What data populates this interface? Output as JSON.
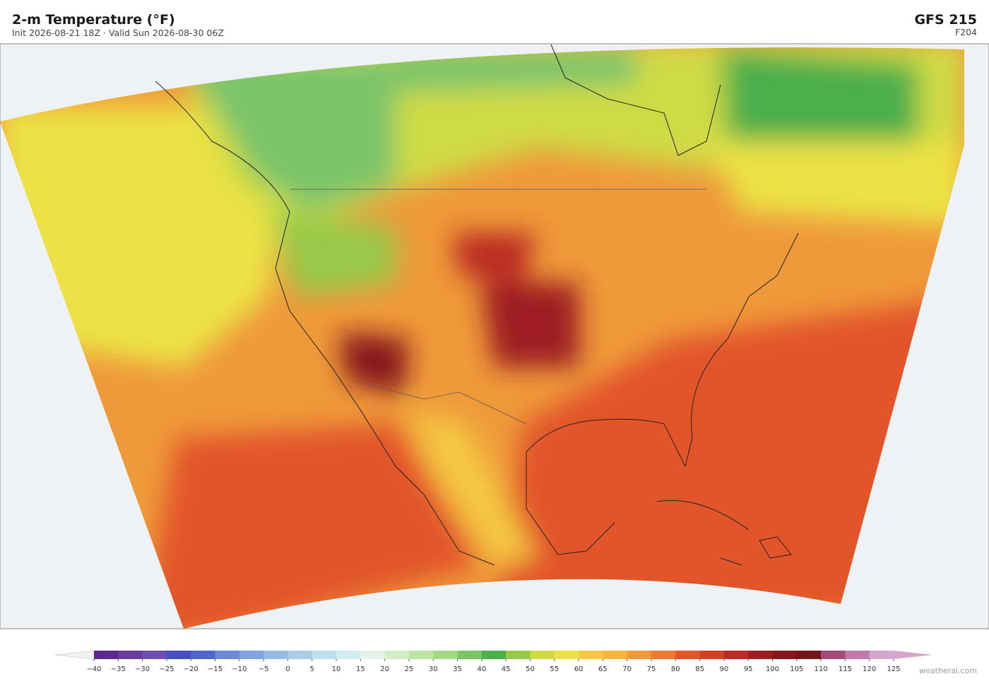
{
  "header": {
    "title": "2-m Temperature  (°F)",
    "subtitle": "Init 2026-08-21 18Z  ·  Valid Sun 2026-08-30 06Z",
    "model": "GFS  215",
    "forecast_hour": "F204"
  },
  "colorbar": {
    "ticks": [
      "−40",
      "−35",
      "−30",
      "−25",
      "−20",
      "−15",
      "−10",
      "−5",
      "0",
      "5",
      "10",
      "15",
      "20",
      "25",
      "30",
      "35",
      "40",
      "45",
      "50",
      "55",
      "60",
      "65",
      "70",
      "75",
      "80",
      "85",
      "90",
      "95",
      "100",
      "105",
      "110",
      "115",
      "120",
      "125"
    ],
    "colors": [
      "#5b2a8c",
      "#6a3d9a",
      "#6e4fb0",
      "#4a4cc0",
      "#4f67cc",
      "#6a8ad6",
      "#7fa5dc",
      "#93bde2",
      "#a8cfe6",
      "#bde0ee",
      "#d2ecf2",
      "#e4f3ea",
      "#d3edc6",
      "#bde4a0",
      "#a2d886",
      "#7cc46a",
      "#4caf4c",
      "#98c94a",
      "#cfdb45",
      "#ece245",
      "#f5c843",
      "#f3b53e",
      "#ef9a3a",
      "#eb7a35",
      "#e2552b",
      "#d43e27",
      "#bb2a24",
      "#9e1f20",
      "#86181d",
      "#74151c",
      "#a24a7a",
      "#c27aa8",
      "#d8a6cc"
    ],
    "extend_colors": [
      "#f2f2f2",
      "#d8a6cc"
    ]
  },
  "watermark": "weatherai.com"
}
